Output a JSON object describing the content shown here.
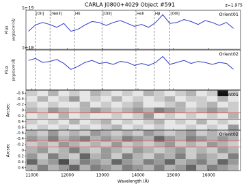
{
  "title": "CARLA J0800+4029 Object #591",
  "annotation": "z=1.975",
  "xlabel": "Wavelength (Å)",
  "xlim": [
    10830,
    16900
  ],
  "xticks": [
    11000,
    12000,
    13000,
    14000,
    15000,
    16000
  ],
  "lines": [
    {
      "label": "[OII]",
      "wavelength": 11088
    },
    {
      "label": "[NeIII]",
      "wavelength": 11510
    },
    {
      "label": "Hδ",
      "wavelength": 12203
    },
    {
      "label": "[OIII]",
      "wavelength": 12980
    },
    {
      "label": "HeII",
      "wavelength": 13941
    },
    {
      "label": "Hβ",
      "wavelength": 14461
    },
    {
      "label": "[OIII]",
      "wavelength": 14896
    }
  ],
  "chart_data": [
    {
      "type": "line",
      "name": "Orient01",
      "ylabel": "Flux",
      "yunit": "(erg/s/cm²/Å)",
      "offset_label": "1e-19",
      "color": "#2a35c8",
      "ylim": [
        -2.5,
        5.5
      ],
      "x": [
        10900,
        11100,
        11300,
        11500,
        11700,
        11900,
        12100,
        12300,
        12500,
        12700,
        12900,
        13100,
        13300,
        13500,
        13700,
        13900,
        14100,
        14300,
        14500,
        14700,
        14900,
        15100,
        15300,
        15500,
        15700,
        15900,
        16100,
        16300,
        16500,
        16700
      ],
      "values": [
        1.2,
        2.5,
        3.0,
        2.6,
        2.0,
        2.8,
        1.2,
        1.6,
        2.5,
        3.2,
        3.0,
        2.4,
        3.0,
        3.4,
        2.8,
        2.2,
        2.6,
        2.0,
        3.0,
        4.6,
        2.8,
        3.0,
        3.6,
        3.2,
        2.6,
        3.4,
        3.0,
        2.4,
        3.0,
        1.8
      ]
    },
    {
      "type": "line",
      "name": "Orient02",
      "ylabel": "Flux",
      "yunit": "(erg/s/cm²/Å)",
      "offset_label": "1e-19",
      "color": "#2a35c8",
      "ylim": [
        -2.5,
        5.5
      ],
      "x": [
        10900,
        11100,
        11300,
        11500,
        11700,
        11900,
        12100,
        12300,
        12500,
        12700,
        12900,
        13100,
        13300,
        13500,
        13700,
        13900,
        14100,
        14300,
        14500,
        14700,
        14900,
        15100,
        15300,
        15500,
        15700,
        15900,
        16100,
        16300,
        16500,
        16700
      ],
      "values": [
        3.4,
        3.8,
        3.0,
        3.2,
        3.6,
        2.8,
        1.6,
        2.2,
        3.0,
        3.4,
        2.8,
        3.0,
        2.6,
        3.2,
        3.0,
        2.4,
        2.8,
        2.4,
        3.0,
        4.2,
        2.6,
        3.0,
        3.4,
        2.8,
        3.2,
        3.0,
        2.6,
        3.0,
        2.8,
        1.6
      ]
    },
    {
      "type": "heatmap",
      "name": "Orient01",
      "ylabel": "Arcsec",
      "ylim": [
        0.7,
        -0.7
      ],
      "yticks": [
        -0.6,
        -0.4,
        -0.2,
        0.0,
        0.2,
        0.4,
        0.6
      ],
      "hlines": [
        0.09,
        0.32
      ],
      "hline_color": "#d9534f",
      "x": [
        11000,
        11300,
        11600,
        11900,
        12200,
        12500,
        12800,
        13100,
        13400,
        13700,
        14000,
        14300,
        14600,
        14900,
        15200,
        15500,
        15800,
        16100,
        16400,
        16700
      ],
      "y": [
        -0.6,
        -0.4,
        -0.2,
        0.0,
        0.2,
        0.4,
        0.6
      ],
      "values": [
        [
          0.2,
          0.1,
          0.3,
          0.1,
          0.2,
          0.1,
          0.3,
          0.2,
          0.1,
          0.2,
          0.1,
          0.3,
          0.2,
          0.1,
          0.2,
          0.3,
          0.1,
          0.2,
          0.9,
          0.2
        ],
        [
          0.1,
          0.3,
          0.1,
          0.2,
          0.4,
          0.1,
          0.2,
          0.1,
          0.3,
          0.1,
          0.2,
          0.1,
          0.2,
          0.3,
          0.1,
          0.2,
          0.2,
          0.1,
          0.3,
          0.1
        ],
        [
          0.2,
          0.1,
          0.2,
          0.1,
          0.1,
          0.3,
          0.1,
          0.2,
          0.1,
          0.2,
          0.3,
          0.1,
          0.1,
          0.2,
          0.3,
          0.1,
          0.2,
          0.3,
          0.1,
          0.2
        ],
        [
          0.3,
          0.2,
          0.4,
          0.3,
          0.2,
          0.3,
          0.4,
          0.3,
          0.2,
          0.3,
          0.4,
          0.3,
          0.5,
          0.4,
          0.3,
          0.2,
          0.3,
          0.4,
          0.3,
          0.2
        ],
        [
          0.1,
          0.2,
          0.1,
          0.3,
          0.1,
          0.2,
          0.1,
          0.1,
          0.2,
          0.1,
          0.2,
          0.4,
          0.1,
          0.2,
          0.1,
          0.2,
          0.1,
          0.2,
          0.1,
          0.3
        ],
        [
          0.2,
          0.1,
          0.2,
          0.1,
          0.3,
          0.1,
          0.2,
          0.3,
          0.1,
          0.2,
          0.1,
          0.2,
          0.3,
          0.1,
          0.2,
          0.1,
          0.3,
          0.1,
          0.2,
          0.1
        ],
        [
          0.1,
          0.2,
          0.1,
          0.2,
          0.1,
          0.2,
          0.1,
          0.2,
          0.3,
          0.1,
          0.2,
          0.1,
          0.2,
          0.1,
          0.1,
          0.2,
          0.1,
          0.2,
          0.1,
          0.4
        ]
      ]
    },
    {
      "type": "heatmap",
      "name": "Orient02",
      "ylabel": "Arcsec",
      "ylim": [
        0.7,
        -0.7
      ],
      "yticks": [
        -0.6,
        -0.4,
        -0.2,
        0.0,
        0.2,
        0.4,
        0.6
      ],
      "hlines": [
        -0.35,
        -0.12
      ],
      "hline_color": "#d9534f",
      "x": [
        11000,
        11300,
        11600,
        11900,
        12200,
        12500,
        12800,
        13100,
        13400,
        13700,
        14000,
        14300,
        14600,
        14900,
        15200,
        15500,
        15800,
        16100,
        16400,
        16700
      ],
      "y": [
        -0.6,
        -0.4,
        -0.2,
        0.0,
        0.2,
        0.4,
        0.6
      ],
      "values": [
        [
          0.3,
          0.2,
          0.4,
          0.2,
          0.3,
          0.2,
          0.4,
          0.3,
          0.2,
          0.3,
          0.2,
          0.4,
          0.3,
          0.2,
          0.3,
          0.4,
          0.2,
          0.3,
          0.2,
          0.3
        ],
        [
          0.4,
          0.3,
          0.5,
          0.3,
          0.4,
          0.5,
          0.3,
          0.4,
          0.3,
          0.5,
          0.4,
          0.3,
          0.6,
          0.4,
          0.3,
          0.5,
          0.4,
          0.3,
          0.4,
          0.3
        ],
        [
          0.2,
          0.3,
          0.2,
          0.4,
          0.3,
          0.2,
          0.3,
          0.2,
          0.4,
          0.2,
          0.3,
          0.2,
          0.3,
          0.4,
          0.2,
          0.3,
          0.2,
          0.4,
          0.3,
          0.2
        ],
        [
          0.3,
          0.4,
          0.2,
          0.3,
          0.5,
          0.3,
          0.2,
          0.4,
          0.3,
          0.2,
          0.4,
          0.3,
          0.2,
          0.3,
          0.4,
          0.2,
          0.3,
          0.2,
          0.4,
          0.3
        ],
        [
          0.4,
          0.2,
          0.5,
          0.3,
          0.2,
          0.6,
          0.3,
          0.4,
          0.2,
          0.5,
          0.3,
          0.2,
          0.4,
          0.3,
          0.5,
          0.2,
          0.4,
          0.3,
          0.2,
          0.5
        ],
        [
          0.6,
          0.3,
          0.4,
          0.7,
          0.3,
          0.5,
          0.4,
          0.3,
          0.6,
          0.4,
          0.3,
          0.5,
          0.4,
          0.6,
          0.3,
          0.4,
          0.5,
          0.3,
          0.6,
          0.4
        ],
        [
          0.3,
          0.5,
          0.3,
          0.4,
          0.6,
          0.3,
          0.5,
          0.4,
          0.3,
          0.5,
          0.4,
          0.3,
          0.5,
          0.3,
          0.4,
          0.6,
          0.3,
          0.5,
          0.4,
          0.3
        ]
      ]
    }
  ]
}
